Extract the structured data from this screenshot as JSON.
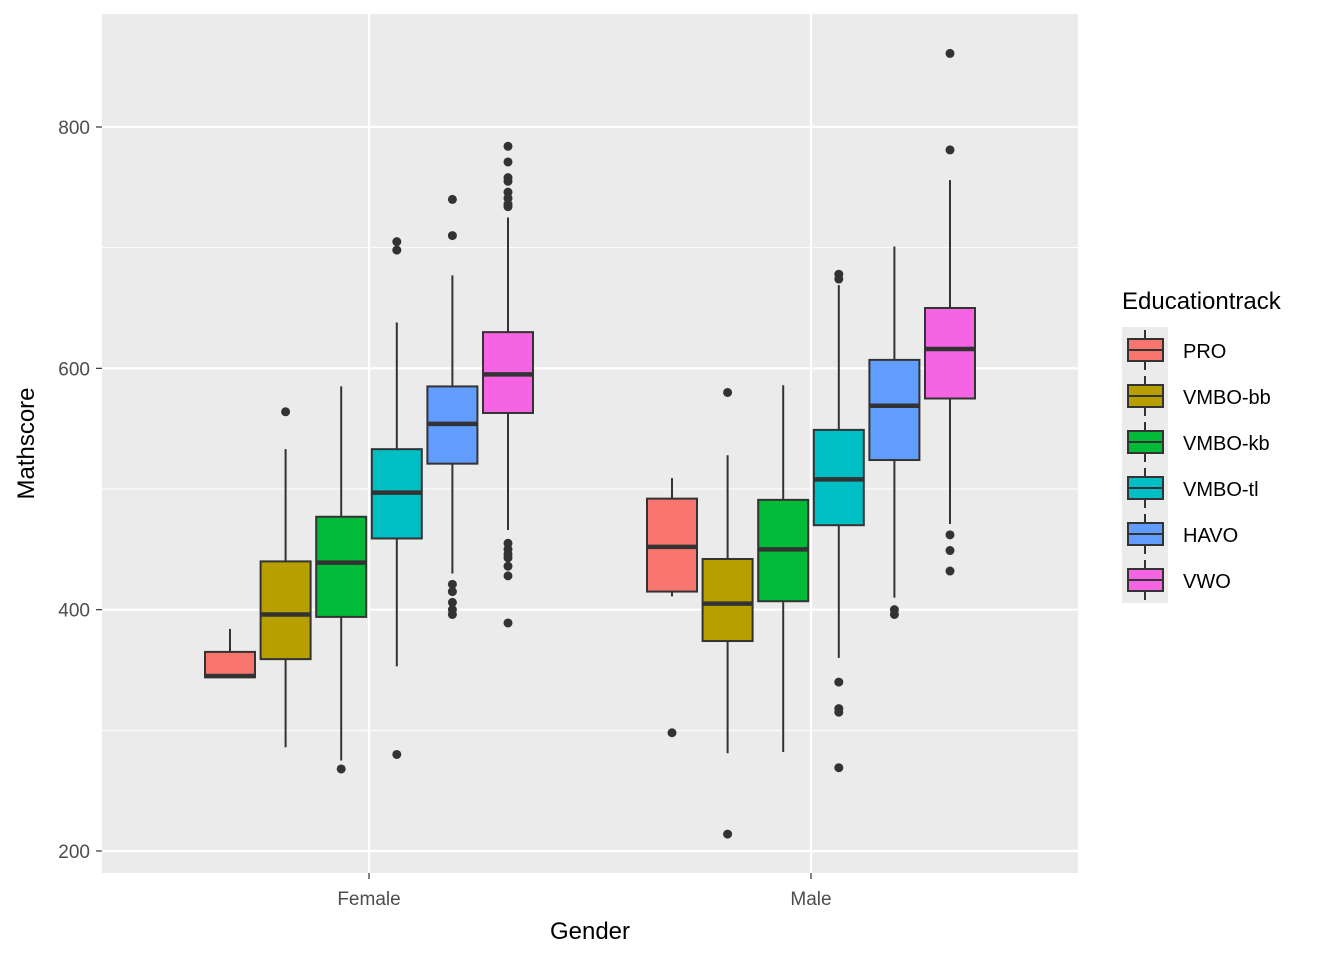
{
  "chart_data": {
    "type": "boxplot",
    "title": "",
    "xlabel": "Gender",
    "ylabel": "Mathscore",
    "categories": [
      "Female",
      "Male"
    ],
    "ylim": [
      185,
      885
    ],
    "yticks": [
      200,
      400,
      600,
      800
    ],
    "ytick_labels": [
      "200",
      "400",
      "600",
      "800"
    ],
    "grid": true,
    "legend": {
      "title": "Educationtrack",
      "position": "right",
      "entries": [
        "PRO",
        "VMBO-bb",
        "VMBO-kb",
        "VMBO-tl",
        "HAVO",
        "VWO"
      ]
    },
    "colors": {
      "PRO": "#F8766D",
      "VMBO-bb": "#B79F00",
      "VMBO-kb": "#00BA38",
      "VMBO-tl": "#00BFC4",
      "HAVO": "#619CFF",
      "VWO": "#F564E3"
    },
    "series": [
      {
        "name": "PRO",
        "boxes": [
          {
            "category": "Female",
            "whisker_low": 344,
            "q1": 344,
            "median": 345,
            "q3": 365,
            "whisker_high": 384,
            "outliers": []
          },
          {
            "category": "Male",
            "whisker_low": 411,
            "q1": 415,
            "median": 452,
            "q3": 492,
            "whisker_high": 509,
            "outliers": [
              298
            ]
          }
        ]
      },
      {
        "name": "VMBO-bb",
        "boxes": [
          {
            "category": "Female",
            "whisker_low": 286,
            "q1": 359,
            "median": 396,
            "q3": 440,
            "whisker_high": 533,
            "outliers": [
              564
            ]
          },
          {
            "category": "Male",
            "whisker_low": 281,
            "q1": 374,
            "median": 405,
            "q3": 442,
            "whisker_high": 528,
            "outliers": [
              580,
              214
            ]
          }
        ]
      },
      {
        "name": "VMBO-kb",
        "boxes": [
          {
            "category": "Female",
            "whisker_low": 275,
            "q1": 394,
            "median": 439,
            "q3": 477,
            "whisker_high": 585,
            "outliers": [
              268
            ]
          },
          {
            "category": "Male",
            "whisker_low": 282,
            "q1": 407,
            "median": 450,
            "q3": 491,
            "whisker_high": 586,
            "outliers": []
          }
        ]
      },
      {
        "name": "VMBO-tl",
        "boxes": [
          {
            "category": "Female",
            "whisker_low": 353,
            "q1": 459,
            "median": 497,
            "q3": 533,
            "whisker_high": 638,
            "outliers": [
              705,
              698,
              280
            ]
          },
          {
            "category": "Male",
            "whisker_low": 360,
            "q1": 470,
            "median": 508,
            "q3": 549,
            "whisker_high": 669,
            "outliers": [
              678,
              674,
              340,
              318,
              315,
              269
            ]
          }
        ]
      },
      {
        "name": "HAVO",
        "boxes": [
          {
            "category": "Female",
            "whisker_low": 430,
            "q1": 521,
            "median": 554,
            "q3": 585,
            "whisker_high": 677,
            "outliers": [
              740,
              710,
              421,
              415,
              406,
              400,
              396
            ]
          },
          {
            "category": "Male",
            "whisker_low": 410,
            "q1": 524,
            "median": 569,
            "q3": 607,
            "whisker_high": 701,
            "outliers": [
              400,
              396
            ]
          }
        ]
      },
      {
        "name": "VWO",
        "boxes": [
          {
            "category": "Female",
            "whisker_low": 466,
            "q1": 563,
            "median": 595,
            "q3": 630,
            "whisker_high": 725,
            "outliers": [
              784,
              771,
              758,
              755,
              746,
              741,
              736,
              734,
              455,
              450,
              446,
              443,
              436,
              428,
              389
            ]
          },
          {
            "category": "Male",
            "whisker_low": 471,
            "q1": 575,
            "median": 616,
            "q3": 650,
            "whisker_high": 756,
            "outliers": [
              861,
              781,
              462,
              449,
              432
            ]
          }
        ]
      }
    ]
  }
}
